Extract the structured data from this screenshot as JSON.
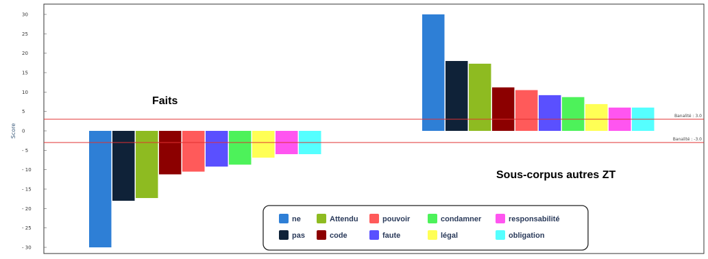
{
  "chart_data": {
    "type": "bar",
    "ylabel": "Score",
    "ylim": [
      -30,
      30
    ],
    "yticks": [
      30,
      25,
      20,
      15,
      10,
      5,
      0,
      -5,
      -10,
      -15,
      -20,
      -25,
      -30
    ],
    "groups": [
      {
        "label": "Faits",
        "values": [
          -30,
          -18,
          -17.3,
          -11.2,
          -10.5,
          -9.2,
          -8.7,
          -6.9,
          -6,
          -6
        ]
      },
      {
        "label": "Sous-corpus autres ZT",
        "values": [
          30,
          18,
          17.3,
          11.2,
          10.5,
          9.2,
          8.7,
          6.9,
          6,
          6
        ]
      }
    ],
    "series": [
      {
        "name": "ne",
        "color": "#2e7fd6"
      },
      {
        "name": "pas",
        "color": "#0f2238"
      },
      {
        "name": "Attendu",
        "color": "#8ebb21"
      },
      {
        "name": "code",
        "color": "#8c0000"
      },
      {
        "name": "pouvoir",
        "color": "#ff5a5a"
      },
      {
        "name": "faute",
        "color": "#5a50ff"
      },
      {
        "name": "condamner",
        "color": "#4df25a"
      },
      {
        "name": "légal",
        "color": "#ffff55"
      },
      {
        "name": "responsabilité",
        "color": "#ff55f0"
      },
      {
        "name": "obligation",
        "color": "#55ffff"
      }
    ],
    "thresholds": [
      {
        "value": 3.0,
        "label": "Banalité : 3.0",
        "color": "#e03030"
      },
      {
        "value": -3.0,
        "label": "Banalité : -3.0",
        "color": "#e03030"
      }
    ],
    "legend_position": "bottom-center",
    "grid": false
  }
}
